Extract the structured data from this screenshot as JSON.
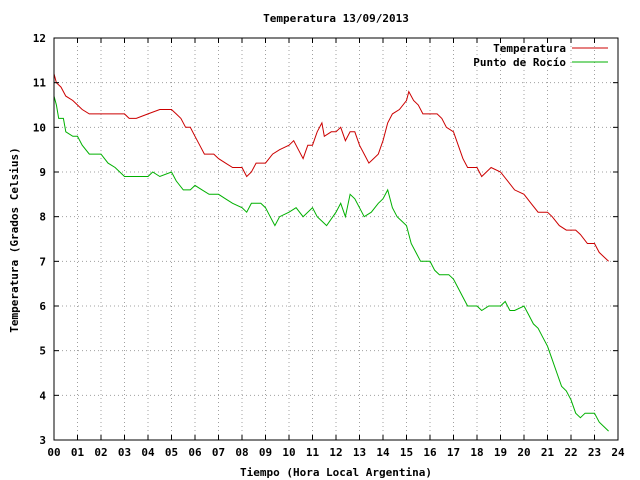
{
  "chart_data": {
    "type": "line",
    "title": "Temperatura 13/09/2013",
    "xlabel": "Tiempo (Hora Local Argentina)",
    "ylabel": "Temperatura (Grados Celsius)",
    "xlim": [
      0,
      24
    ],
    "ylim": [
      3,
      12
    ],
    "x_ticks": [
      "00",
      "01",
      "02",
      "03",
      "04",
      "05",
      "06",
      "07",
      "08",
      "09",
      "10",
      "11",
      "12",
      "13",
      "14",
      "15",
      "16",
      "17",
      "18",
      "19",
      "20",
      "21",
      "22",
      "23",
      "24"
    ],
    "y_ticks": [
      "3",
      "4",
      "5",
      "6",
      "7",
      "8",
      "9",
      "10",
      "11",
      "12"
    ],
    "grid": true,
    "legend_position": "top-right",
    "series": [
      {
        "name": "Temperatura",
        "color": "#cc0000",
        "points": [
          [
            0.0,
            11.2
          ],
          [
            0.1,
            11.0
          ],
          [
            0.3,
            10.9
          ],
          [
            0.5,
            10.7
          ],
          [
            0.8,
            10.6
          ],
          [
            1.0,
            10.5
          ],
          [
            1.2,
            10.4
          ],
          [
            1.5,
            10.3
          ],
          [
            2.0,
            10.3
          ],
          [
            2.5,
            10.3
          ],
          [
            3.0,
            10.3
          ],
          [
            3.2,
            10.2
          ],
          [
            3.5,
            10.2
          ],
          [
            4.0,
            10.3
          ],
          [
            4.5,
            10.4
          ],
          [
            5.0,
            10.4
          ],
          [
            5.2,
            10.3
          ],
          [
            5.4,
            10.2
          ],
          [
            5.6,
            10.0
          ],
          [
            5.8,
            10.0
          ],
          [
            6.0,
            9.8
          ],
          [
            6.2,
            9.6
          ],
          [
            6.4,
            9.4
          ],
          [
            6.8,
            9.4
          ],
          [
            7.0,
            9.3
          ],
          [
            7.3,
            9.2
          ],
          [
            7.6,
            9.1
          ],
          [
            8.0,
            9.1
          ],
          [
            8.2,
            8.9
          ],
          [
            8.4,
            9.0
          ],
          [
            8.6,
            9.2
          ],
          [
            9.0,
            9.2
          ],
          [
            9.3,
            9.4
          ],
          [
            9.6,
            9.5
          ],
          [
            10.0,
            9.6
          ],
          [
            10.2,
            9.7
          ],
          [
            10.4,
            9.5
          ],
          [
            10.6,
            9.3
          ],
          [
            10.8,
            9.6
          ],
          [
            11.0,
            9.6
          ],
          [
            11.2,
            9.9
          ],
          [
            11.4,
            10.1
          ],
          [
            11.5,
            9.8
          ],
          [
            11.8,
            9.9
          ],
          [
            12.0,
            9.9
          ],
          [
            12.2,
            10.0
          ],
          [
            12.4,
            9.7
          ],
          [
            12.6,
            9.9
          ],
          [
            12.8,
            9.9
          ],
          [
            13.0,
            9.6
          ],
          [
            13.2,
            9.4
          ],
          [
            13.4,
            9.2
          ],
          [
            13.6,
            9.3
          ],
          [
            13.8,
            9.4
          ],
          [
            14.0,
            9.7
          ],
          [
            14.2,
            10.1
          ],
          [
            14.4,
            10.3
          ],
          [
            14.7,
            10.4
          ],
          [
            15.0,
            10.6
          ],
          [
            15.1,
            10.8
          ],
          [
            15.3,
            10.6
          ],
          [
            15.5,
            10.5
          ],
          [
            15.7,
            10.3
          ],
          [
            16.0,
            10.3
          ],
          [
            16.3,
            10.3
          ],
          [
            16.5,
            10.2
          ],
          [
            16.7,
            10.0
          ],
          [
            17.0,
            9.9
          ],
          [
            17.2,
            9.6
          ],
          [
            17.4,
            9.3
          ],
          [
            17.6,
            9.1
          ],
          [
            18.0,
            9.1
          ],
          [
            18.2,
            8.9
          ],
          [
            18.4,
            9.0
          ],
          [
            18.6,
            9.1
          ],
          [
            19.0,
            9.0
          ],
          [
            19.3,
            8.8
          ],
          [
            19.6,
            8.6
          ],
          [
            20.0,
            8.5
          ],
          [
            20.3,
            8.3
          ],
          [
            20.6,
            8.1
          ],
          [
            21.0,
            8.1
          ],
          [
            21.2,
            8.0
          ],
          [
            21.5,
            7.8
          ],
          [
            21.8,
            7.7
          ],
          [
            22.2,
            7.7
          ],
          [
            22.4,
            7.6
          ],
          [
            22.7,
            7.4
          ],
          [
            23.0,
            7.4
          ],
          [
            23.2,
            7.2
          ],
          [
            23.4,
            7.1
          ],
          [
            23.6,
            7.0
          ]
        ]
      },
      {
        "name": "Punto de Rocío",
        "color": "#00b000",
        "points": [
          [
            0.0,
            10.7
          ],
          [
            0.1,
            10.5
          ],
          [
            0.2,
            10.2
          ],
          [
            0.4,
            10.2
          ],
          [
            0.5,
            9.9
          ],
          [
            0.8,
            9.8
          ],
          [
            1.0,
            9.8
          ],
          [
            1.2,
            9.6
          ],
          [
            1.5,
            9.4
          ],
          [
            2.0,
            9.4
          ],
          [
            2.3,
            9.2
          ],
          [
            2.6,
            9.1
          ],
          [
            3.0,
            8.9
          ],
          [
            3.5,
            8.9
          ],
          [
            4.0,
            8.9
          ],
          [
            4.2,
            9.0
          ],
          [
            4.5,
            8.9
          ],
          [
            5.0,
            9.0
          ],
          [
            5.2,
            8.8
          ],
          [
            5.5,
            8.6
          ],
          [
            5.8,
            8.6
          ],
          [
            6.0,
            8.7
          ],
          [
            6.3,
            8.6
          ],
          [
            6.6,
            8.5
          ],
          [
            7.0,
            8.5
          ],
          [
            7.3,
            8.4
          ],
          [
            7.6,
            8.3
          ],
          [
            8.0,
            8.2
          ],
          [
            8.2,
            8.1
          ],
          [
            8.4,
            8.3
          ],
          [
            8.8,
            8.3
          ],
          [
            9.0,
            8.2
          ],
          [
            9.2,
            8.0
          ],
          [
            9.4,
            7.8
          ],
          [
            9.6,
            8.0
          ],
          [
            10.0,
            8.1
          ],
          [
            10.3,
            8.2
          ],
          [
            10.6,
            8.0
          ],
          [
            11.0,
            8.2
          ],
          [
            11.2,
            8.0
          ],
          [
            11.4,
            7.9
          ],
          [
            11.6,
            7.8
          ],
          [
            12.0,
            8.1
          ],
          [
            12.2,
            8.3
          ],
          [
            12.4,
            8.0
          ],
          [
            12.6,
            8.5
          ],
          [
            12.8,
            8.4
          ],
          [
            13.0,
            8.2
          ],
          [
            13.2,
            8.0
          ],
          [
            13.5,
            8.1
          ],
          [
            13.8,
            8.3
          ],
          [
            14.0,
            8.4
          ],
          [
            14.2,
            8.6
          ],
          [
            14.4,
            8.2
          ],
          [
            14.6,
            8.0
          ],
          [
            14.8,
            7.9
          ],
          [
            15.0,
            7.8
          ],
          [
            15.2,
            7.4
          ],
          [
            15.4,
            7.2
          ],
          [
            15.6,
            7.0
          ],
          [
            16.0,
            7.0
          ],
          [
            16.2,
            6.8
          ],
          [
            16.4,
            6.7
          ],
          [
            16.8,
            6.7
          ],
          [
            17.0,
            6.6
          ],
          [
            17.2,
            6.4
          ],
          [
            17.4,
            6.2
          ],
          [
            17.6,
            6.0
          ],
          [
            18.0,
            6.0
          ],
          [
            18.2,
            5.9
          ],
          [
            18.5,
            6.0
          ],
          [
            19.0,
            6.0
          ],
          [
            19.2,
            6.1
          ],
          [
            19.4,
            5.9
          ],
          [
            19.6,
            5.9
          ],
          [
            20.0,
            6.0
          ],
          [
            20.2,
            5.8
          ],
          [
            20.4,
            5.6
          ],
          [
            20.6,
            5.5
          ],
          [
            20.8,
            5.3
          ],
          [
            21.0,
            5.1
          ],
          [
            21.2,
            4.8
          ],
          [
            21.4,
            4.5
          ],
          [
            21.6,
            4.2
          ],
          [
            21.8,
            4.1
          ],
          [
            22.0,
            3.9
          ],
          [
            22.2,
            3.6
          ],
          [
            22.4,
            3.5
          ],
          [
            22.6,
            3.6
          ],
          [
            22.8,
            3.6
          ],
          [
            23.0,
            3.6
          ],
          [
            23.2,
            3.4
          ],
          [
            23.4,
            3.3
          ],
          [
            23.6,
            3.2
          ]
        ]
      }
    ]
  }
}
